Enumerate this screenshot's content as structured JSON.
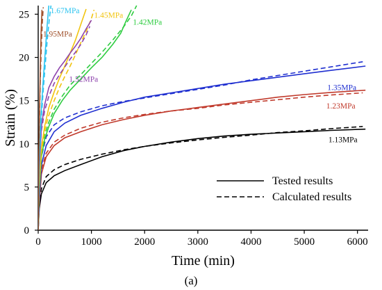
{
  "chart_data": {
    "type": "line",
    "xlabel": "Time (min)",
    "ylabel": "Strain (%)",
    "xlim": [
      0,
      6200
    ],
    "ylim": [
      0,
      26
    ],
    "xticks": [
      0,
      1000,
      2000,
      3000,
      4000,
      5000,
      6000
    ],
    "yticks": [
      0,
      5,
      10,
      15,
      20,
      25
    ],
    "grid": false,
    "legend_position": "lower-right",
    "legend": [
      {
        "label": "Tested results",
        "style": "solid"
      },
      {
        "label": "Calculated results",
        "style": "dashed"
      }
    ],
    "caption": "(a)",
    "series": [
      {
        "name": "1.13MPa",
        "color": "#000000",
        "tested": {
          "x": [
            0,
            20,
            60,
            150,
            300,
            500,
            800,
            1200,
            1600,
            2000,
            2500,
            3000,
            3500,
            4000,
            4500,
            5000,
            5500,
            6150
          ],
          "y": [
            0,
            2.5,
            4.2,
            5.5,
            6.3,
            6.9,
            7.6,
            8.5,
            9.2,
            9.7,
            10.2,
            10.6,
            10.9,
            11.1,
            11.25,
            11.4,
            11.55,
            11.7
          ]
        },
        "calculated": {
          "x": [
            0,
            20,
            60,
            150,
            300,
            500,
            800,
            1200,
            1600,
            2000,
            2500,
            3000,
            3500,
            4000,
            4500,
            5000,
            5500,
            6100
          ],
          "y": [
            0,
            3.0,
            4.8,
            6.2,
            7.0,
            7.6,
            8.2,
            8.8,
            9.3,
            9.7,
            10.1,
            10.45,
            10.75,
            11.0,
            11.3,
            11.5,
            11.75,
            12.0
          ]
        }
      },
      {
        "name": "1.23MPa",
        "color": "#c0392b",
        "tested": {
          "x": [
            0,
            20,
            60,
            150,
            300,
            500,
            800,
            1200,
            1600,
            2000,
            2500,
            3000,
            3500,
            4000,
            4500,
            5000,
            5500,
            6150
          ],
          "y": [
            0,
            3.0,
            6.5,
            8.5,
            9.8,
            10.7,
            11.4,
            12.2,
            12.8,
            13.3,
            13.8,
            14.2,
            14.6,
            15.0,
            15.4,
            15.7,
            15.95,
            16.2
          ]
        },
        "calculated": {
          "x": [
            0,
            20,
            60,
            150,
            300,
            500,
            800,
            1200,
            1600,
            2000,
            2500,
            3000,
            3500,
            4000,
            4500,
            5000,
            5500,
            6100
          ],
          "y": [
            0,
            3.5,
            7.0,
            8.9,
            10.2,
            11.0,
            11.8,
            12.5,
            13.0,
            13.4,
            13.8,
            14.1,
            14.5,
            14.8,
            15.1,
            15.4,
            15.65,
            15.9
          ]
        }
      },
      {
        "name": "1.35MPa",
        "color": "#1f2fd0",
        "tested": {
          "x": [
            0,
            20,
            60,
            150,
            300,
            500,
            800,
            1200,
            1600,
            2000,
            2500,
            3000,
            3500,
            4000,
            4500,
            5000,
            5500,
            6150
          ],
          "y": [
            0,
            3.5,
            7.5,
            9.8,
            11.4,
            12.4,
            13.3,
            14.1,
            14.8,
            15.4,
            15.9,
            16.4,
            16.9,
            17.3,
            17.7,
            18.1,
            18.5,
            19.0
          ]
        },
        "calculated": {
          "x": [
            0,
            20,
            60,
            150,
            300,
            500,
            800,
            1200,
            1600,
            2000,
            2500,
            3000,
            3500,
            4000,
            4500,
            5000,
            5500,
            6100
          ],
          "y": [
            0,
            4.0,
            8.5,
            10.8,
            12.2,
            13.0,
            13.7,
            14.4,
            14.9,
            15.3,
            15.8,
            16.3,
            16.8,
            17.4,
            17.9,
            18.4,
            18.9,
            19.5
          ]
        }
      },
      {
        "name": "1.42MPa",
        "color": "#2ecc40",
        "tested": {
          "x": [
            0,
            20,
            60,
            120,
            200,
            300,
            450,
            600,
            800,
            1000,
            1200,
            1400,
            1550,
            1650,
            1750
          ],
          "y": [
            0,
            4.5,
            8.5,
            10.5,
            12.0,
            13.5,
            15.0,
            16.2,
            17.5,
            18.8,
            20.0,
            21.5,
            22.8,
            24.2,
            25.5
          ]
        },
        "calculated": {
          "x": [
            0,
            20,
            60,
            120,
            200,
            300,
            450,
            600,
            800,
            1000,
            1200,
            1400,
            1600,
            1750,
            1850
          ],
          "y": [
            0,
            5.0,
            9.0,
            11.0,
            12.5,
            14.0,
            15.5,
            16.8,
            18.0,
            19.3,
            20.6,
            22.0,
            23.5,
            24.8,
            26.0
          ]
        }
      },
      {
        "name": "1.45MPa",
        "color": "#f1c40f",
        "tested": {
          "x": [
            0,
            20,
            60,
            120,
            200,
            300,
            400,
            500,
            600,
            700,
            800,
            900
          ],
          "y": [
            0,
            5.0,
            9.5,
            12.0,
            14.2,
            16.0,
            17.6,
            19.0,
            20.5,
            22.0,
            23.8,
            25.6
          ]
        },
        "calculated": {
          "x": [
            0,
            20,
            60,
            120,
            200,
            300,
            400,
            500,
            600,
            700,
            800,
            900,
            1000,
            1050
          ],
          "y": [
            0,
            5.5,
            9.0,
            11.5,
            13.3,
            15.0,
            16.5,
            17.8,
            19.0,
            20.3,
            21.7,
            23.0,
            24.5,
            25.5
          ]
        }
      },
      {
        "name": "1.52MPa",
        "color": "#8e44ad",
        "tested": {
          "x": [
            0,
            20,
            60,
            120,
            200,
            300,
            400,
            500,
            600,
            700,
            800,
            900,
            1000
          ],
          "y": [
            0,
            7.0,
            12.0,
            14.5,
            16.5,
            17.8,
            18.8,
            19.6,
            20.5,
            21.3,
            22.2,
            23.3,
            24.3
          ]
        },
        "calculated": {
          "x": [
            0,
            20,
            60,
            120,
            200,
            300,
            400,
            500,
            600,
            700,
            800,
            900,
            970
          ],
          "y": [
            0,
            7.5,
            11.5,
            13.8,
            15.5,
            17.0,
            18.0,
            18.9,
            19.8,
            20.6,
            21.5,
            22.6,
            23.6
          ]
        }
      },
      {
        "name": "1.67MPa",
        "color": "#2ec4f0",
        "tested": {
          "x": [
            0,
            20,
            50,
            90,
            130,
            170,
            200
          ],
          "y": [
            0,
            8.0,
            13.0,
            17.0,
            20.5,
            23.8,
            26.0
          ]
        },
        "calculated": {
          "x": [
            0,
            20,
            50,
            90,
            130,
            170,
            210,
            240
          ],
          "y": [
            0,
            7.5,
            12.0,
            15.8,
            19.0,
            22.0,
            24.5,
            26.0
          ]
        }
      },
      {
        "name": "1.95MPa",
        "color": "#a0522d",
        "tested": {
          "x": [
            0,
            10,
            25,
            40,
            55,
            70
          ],
          "y": [
            0,
            8.0,
            14.0,
            19.0,
            23.0,
            25.5
          ]
        },
        "calculated": {
          "x": [
            0,
            10,
            25,
            40,
            60,
            80,
            95
          ],
          "y": [
            0,
            7.5,
            13.0,
            17.8,
            21.5,
            24.3,
            25.8
          ]
        }
      }
    ]
  }
}
